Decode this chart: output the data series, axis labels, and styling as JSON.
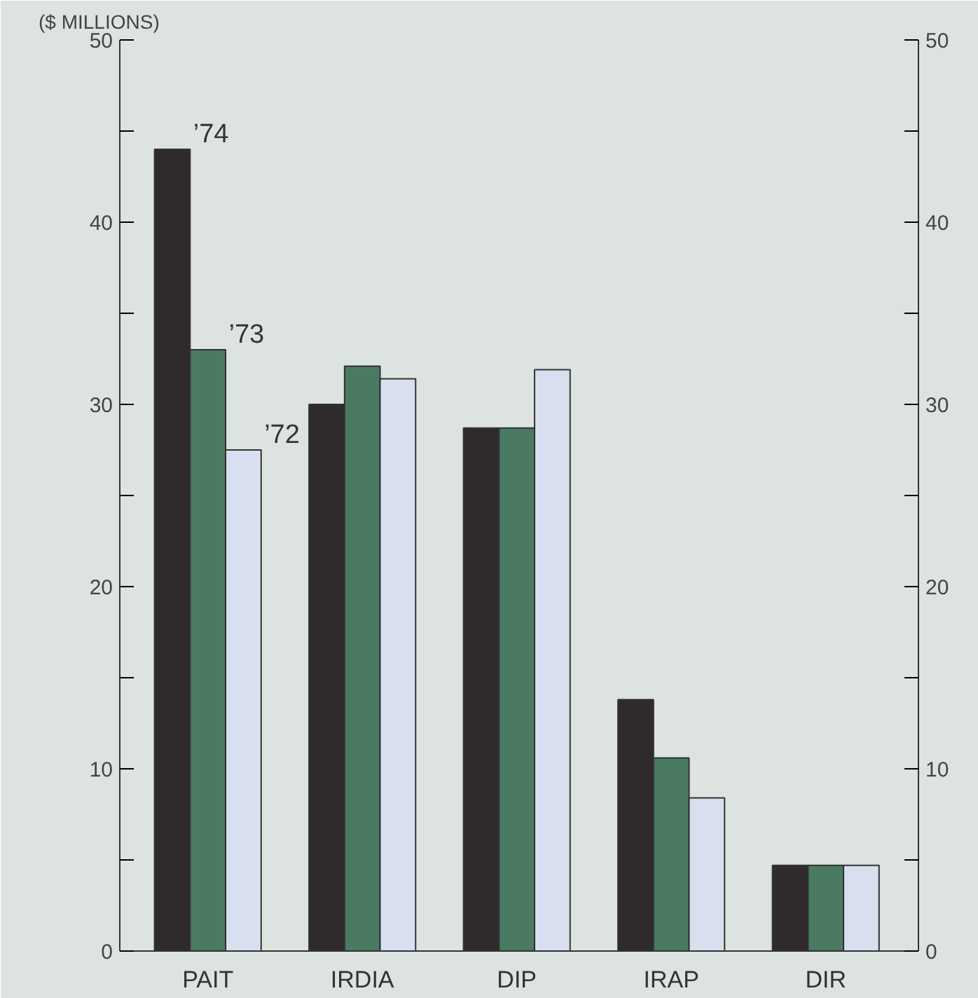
{
  "chart_data": {
    "type": "bar",
    "ylabel": "($ MILLIONS)",
    "categories": [
      "PAIT",
      "IRDIA",
      "DIP",
      "IRAP",
      "DIR"
    ],
    "series": [
      {
        "name": "’74",
        "color": "#2e2a2e",
        "values": [
          44,
          30,
          28.7,
          13.8,
          4.7
        ]
      },
      {
        "name": "’73",
        "color": "#4a7a62",
        "values": [
          33,
          32.1,
          28.7,
          10.6,
          4.7
        ]
      },
      {
        "name": "’72",
        "color": "#d8dfee",
        "values": [
          27.5,
          31.4,
          31.9,
          8.4,
          4.7
        ]
      }
    ],
    "ylim": [
      0,
      50
    ],
    "yticks": [
      0,
      {
        "value": 5,
        "label": null
      },
      10,
      {
        "value": 15,
        "label": null
      },
      20,
      {
        "value": 25,
        "label": null
      },
      30,
      {
        "value": 35,
        "label": null
      },
      40,
      {
        "value": 45,
        "label": null
      },
      50
    ],
    "y2lim": [
      0,
      50
    ],
    "y2ticks": [
      0,
      {
        "value": 5,
        "label": null
      },
      10,
      {
        "value": 15,
        "label": null
      },
      20,
      {
        "value": 25,
        "label": null
      },
      30,
      {
        "value": 35,
        "label": null
      },
      40,
      {
        "value": 45,
        "label": null
      },
      50
    ],
    "grid": false
  }
}
